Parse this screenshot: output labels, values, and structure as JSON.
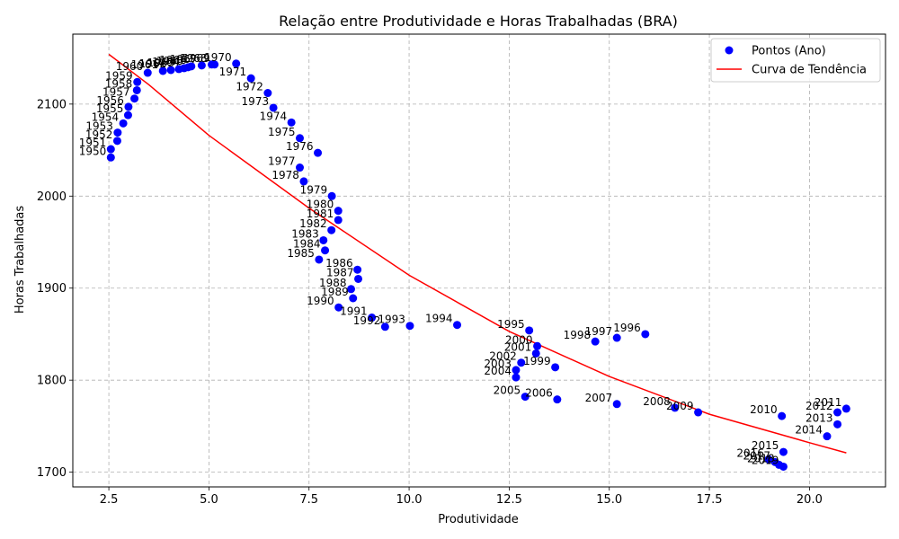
{
  "chart_data": {
    "type": "scatter",
    "title": "Relação entre Produtividade e Horas Trabalhadas (BRA)",
    "xlabel": "Produtividade",
    "ylabel": "Horas Trabalhadas",
    "xlim": [
      1.6,
      21.9
    ],
    "ylim": [
      1684,
      2176
    ],
    "xticks": [
      "2.5",
      "5.0",
      "7.5",
      "10.0",
      "12.5",
      "15.0",
      "17.5",
      "20.0"
    ],
    "yticks": [
      "1700",
      "1800",
      "1900",
      "2000",
      "2100"
    ],
    "grid": true,
    "legend_position": "top-right",
    "series": [
      {
        "name": "Pontos (Ano)",
        "kind": "scatter",
        "color": "#0000ff",
        "points": [
          {
            "label": "1950",
            "x": 2.55,
            "y": 2042
          },
          {
            "label": "1951",
            "x": 2.55,
            "y": 2051
          },
          {
            "label": "1952",
            "x": 2.71,
            "y": 2060
          },
          {
            "label": "1953",
            "x": 2.72,
            "y": 2069
          },
          {
            "label": "1954",
            "x": 2.86,
            "y": 2079
          },
          {
            "label": "1955",
            "x": 2.98,
            "y": 2088
          },
          {
            "label": "1956",
            "x": 2.99,
            "y": 2097
          },
          {
            "label": "1957",
            "x": 3.14,
            "y": 2106
          },
          {
            "label": "1958",
            "x": 3.2,
            "y": 2115
          },
          {
            "label": "1959",
            "x": 3.21,
            "y": 2124
          },
          {
            "label": "1960",
            "x": 3.47,
            "y": 2134
          },
          {
            "label": "1961",
            "x": 3.85,
            "y": 2136
          },
          {
            "label": "1962",
            "x": 4.05,
            "y": 2137
          },
          {
            "label": "1963",
            "x": 4.25,
            "y": 2138
          },
          {
            "label": "1964",
            "x": 4.38,
            "y": 2139
          },
          {
            "label": "1965",
            "x": 4.48,
            "y": 2140
          },
          {
            "label": "1966",
            "x": 4.56,
            "y": 2141
          },
          {
            "label": "1967",
            "x": 4.82,
            "y": 2142
          },
          {
            "label": "1968",
            "x": 5.07,
            "y": 2143
          },
          {
            "label": "1969",
            "x": 5.14,
            "y": 2143
          },
          {
            "label": "1970",
            "x": 5.68,
            "y": 2144
          },
          {
            "label": "1971",
            "x": 6.05,
            "y": 2128
          },
          {
            "label": "1972",
            "x": 6.47,
            "y": 2112
          },
          {
            "label": "1973",
            "x": 6.61,
            "y": 2096
          },
          {
            "label": "1974",
            "x": 7.06,
            "y": 2080
          },
          {
            "label": "1975",
            "x": 7.27,
            "y": 2063
          },
          {
            "label": "1976",
            "x": 7.72,
            "y": 2047
          },
          {
            "label": "1977",
            "x": 7.27,
            "y": 2031
          },
          {
            "label": "1978",
            "x": 7.37,
            "y": 2016
          },
          {
            "label": "1979",
            "x": 8.07,
            "y": 2000
          },
          {
            "label": "1980",
            "x": 8.23,
            "y": 1984
          },
          {
            "label": "1981",
            "x": 8.23,
            "y": 1974
          },
          {
            "label": "1982",
            "x": 8.06,
            "y": 1963
          },
          {
            "label": "1983",
            "x": 7.86,
            "y": 1952
          },
          {
            "label": "1984",
            "x": 7.9,
            "y": 1941
          },
          {
            "label": "1985",
            "x": 7.75,
            "y": 1931
          },
          {
            "label": "1986",
            "x": 8.71,
            "y": 1920
          },
          {
            "label": "1987",
            "x": 8.73,
            "y": 1910
          },
          {
            "label": "1988",
            "x": 8.55,
            "y": 1899
          },
          {
            "label": "1989",
            "x": 8.6,
            "y": 1889
          },
          {
            "label": "1990",
            "x": 8.24,
            "y": 1879
          },
          {
            "label": "1991",
            "x": 9.07,
            "y": 1868
          },
          {
            "label": "1992",
            "x": 9.4,
            "y": 1858
          },
          {
            "label": "1993",
            "x": 10.02,
            "y": 1859
          },
          {
            "label": "1994",
            "x": 11.2,
            "y": 1860
          },
          {
            "label": "1995",
            "x": 13.0,
            "y": 1854
          },
          {
            "label": "1996",
            "x": 15.9,
            "y": 1850
          },
          {
            "label": "1997",
            "x": 15.19,
            "y": 1846
          },
          {
            "label": "1998",
            "x": 14.65,
            "y": 1842
          },
          {
            "label": "1999",
            "x": 13.65,
            "y": 1814
          },
          {
            "label": "2000",
            "x": 13.2,
            "y": 1837
          },
          {
            "label": "2001",
            "x": 13.17,
            "y": 1829
          },
          {
            "label": "2002",
            "x": 12.8,
            "y": 1819
          },
          {
            "label": "2003",
            "x": 12.67,
            "y": 1811
          },
          {
            "label": "2004",
            "x": 12.67,
            "y": 1803
          },
          {
            "label": "2005",
            "x": 12.9,
            "y": 1782
          },
          {
            "label": "2006",
            "x": 13.7,
            "y": 1779
          },
          {
            "label": "2007",
            "x": 15.19,
            "y": 1774
          },
          {
            "label": "2008",
            "x": 16.64,
            "y": 1770
          },
          {
            "label": "2009",
            "x": 17.22,
            "y": 1765
          },
          {
            "label": "2010",
            "x": 19.31,
            "y": 1761
          },
          {
            "label": "2011",
            "x": 20.92,
            "y": 1769
          },
          {
            "label": "2012",
            "x": 20.7,
            "y": 1765
          },
          {
            "label": "2013",
            "x": 20.7,
            "y": 1752
          },
          {
            "label": "2014",
            "x": 20.44,
            "y": 1739
          },
          {
            "label": "2015",
            "x": 19.35,
            "y": 1722
          },
          {
            "label": "2016",
            "x": 18.98,
            "y": 1714
          },
          {
            "label": "2017",
            "x": 19.14,
            "y": 1711
          },
          {
            "label": "2018",
            "x": 19.24,
            "y": 1708
          },
          {
            "label": "2019",
            "x": 19.35,
            "y": 1706
          }
        ]
      },
      {
        "name": "Curva de Tendência",
        "kind": "line",
        "color": "#ff0000",
        "points": [
          {
            "x": 2.5,
            "y": 2154
          },
          {
            "x": 3.5,
            "y": 2121
          },
          {
            "x": 5.0,
            "y": 2066
          },
          {
            "x": 7.5,
            "y": 1987
          },
          {
            "x": 10.0,
            "y": 1914
          },
          {
            "x": 12.5,
            "y": 1853
          },
          {
            "x": 15.0,
            "y": 1804
          },
          {
            "x": 17.5,
            "y": 1763
          },
          {
            "x": 20.0,
            "y": 1732
          },
          {
            "x": 20.92,
            "y": 1721
          }
        ]
      }
    ]
  }
}
